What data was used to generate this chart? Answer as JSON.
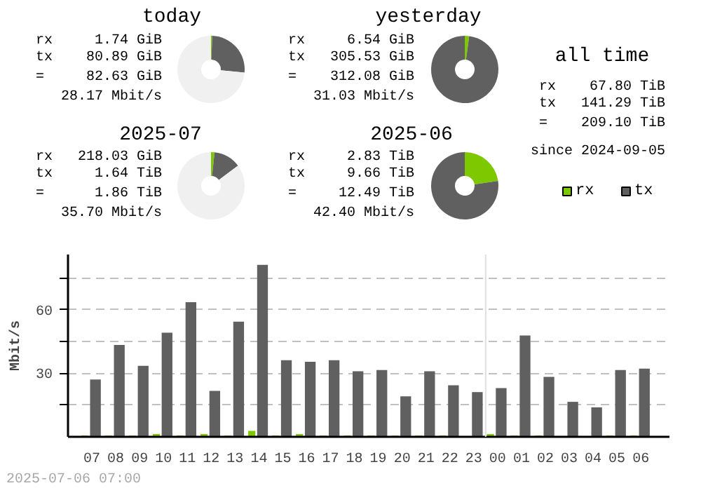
{
  "chart_data": [
    {
      "type": "donut",
      "title": "today",
      "categories": [
        "rx",
        "tx",
        null
      ],
      "values": [
        0.6,
        25.9,
        73.5
      ],
      "colors": [
        "#7ec800",
        "#606060",
        "#f0f0f0"
      ],
      "annotations": [
        "rx 1.74 GiB",
        "tx 80.89 GiB",
        "= 82.63 GiB",
        "28.17 Mbit/s"
      ],
      "legend": "right"
    },
    {
      "type": "donut",
      "title": "yesterday",
      "categories": [
        null,
        null
      ],
      "values": [
        2.1,
        97.9
      ],
      "colors": [
        "#7ec800",
        "#606060"
      ],
      "annotations": [
        "rx 6.54 GiB",
        "tx 305.53 GiB",
        "= 312.08 GiB",
        "31.03 Mbit/s"
      ]
    },
    {
      "type": "donut",
      "title": "2025-07",
      "categories": [
        null,
        null,
        null
      ],
      "values": [
        1.7,
        13.1,
        85.2
      ],
      "colors": [
        "#7ec800",
        "#606060",
        "#f0f0f0"
      ],
      "annotations": [
        "rx 218.03 GiB",
        "tx 1.64 TiB",
        "= 1.86 TiB",
        "35.70 Mbit/s"
      ]
    },
    {
      "type": "donut",
      "title": "2025-06",
      "categories": [
        null,
        null
      ],
      "values": [
        22.7,
        77.3
      ],
      "colors": [
        "#7ec800",
        "#606060"
      ],
      "annotations": [
        "rx 2.83 TiB",
        "tx 9.66 TiB",
        "= 12.49 TiB",
        "42.40 Mbit/s"
      ]
    },
    {
      "type": "other",
      "title": "all time",
      "annotations": [
        "rx 67.80 TiB",
        "tx 141.29 TiB",
        "= 209.10 TiB",
        "since 2024-09-05"
      ]
    },
    {
      "type": "bar",
      "categories": [
        "07",
        "08",
        "09",
        "10",
        "11",
        "12",
        "13",
        "14",
        "15",
        "16",
        "17",
        "18",
        "19",
        "20",
        "21",
        "22",
        "23",
        "00",
        "01",
        "02",
        "03",
        "04",
        "05",
        "06"
      ],
      "series": [
        {
          "color": "#7ec800",
          "values": [
            0.6,
            0.6,
            0.6,
            1.3,
            0.6,
            1.3,
            0.6,
            2.8,
            0.6,
            1.3,
            0.6,
            0.6,
            0.6,
            0.6,
            0.6,
            0.6,
            0.3,
            1.3,
            0.6,
            0.6,
            0.3,
            0.3,
            0.6,
            0.6
          ]
        },
        {
          "color": "#606060",
          "values": [
            27.0,
            43.3,
            33.5,
            49.1,
            63.5,
            21.7,
            54.3,
            81.1,
            36.1,
            35.4,
            36.1,
            30.9,
            31.5,
            19.1,
            30.9,
            24.3,
            21.1,
            23.0,
            47.8,
            28.3,
            16.5,
            13.9,
            31.5,
            32.2
          ]
        }
      ],
      "ylabel": "Mbit/s",
      "ylim": [
        0,
        86
      ],
      "yticks": [
        {
          "value": 15,
          "label": null
        },
        30,
        {
          "value": 45,
          "label": null
        },
        60,
        {
          "value": 75,
          "label": null
        }
      ],
      "grid": "y",
      "ref_lines": [
        {
          "axis": "x",
          "value": "00",
          "color": "#e0e0e0"
        }
      ],
      "annotations": [
        "2025-07-06 07:00"
      ]
    }
  ]
}
